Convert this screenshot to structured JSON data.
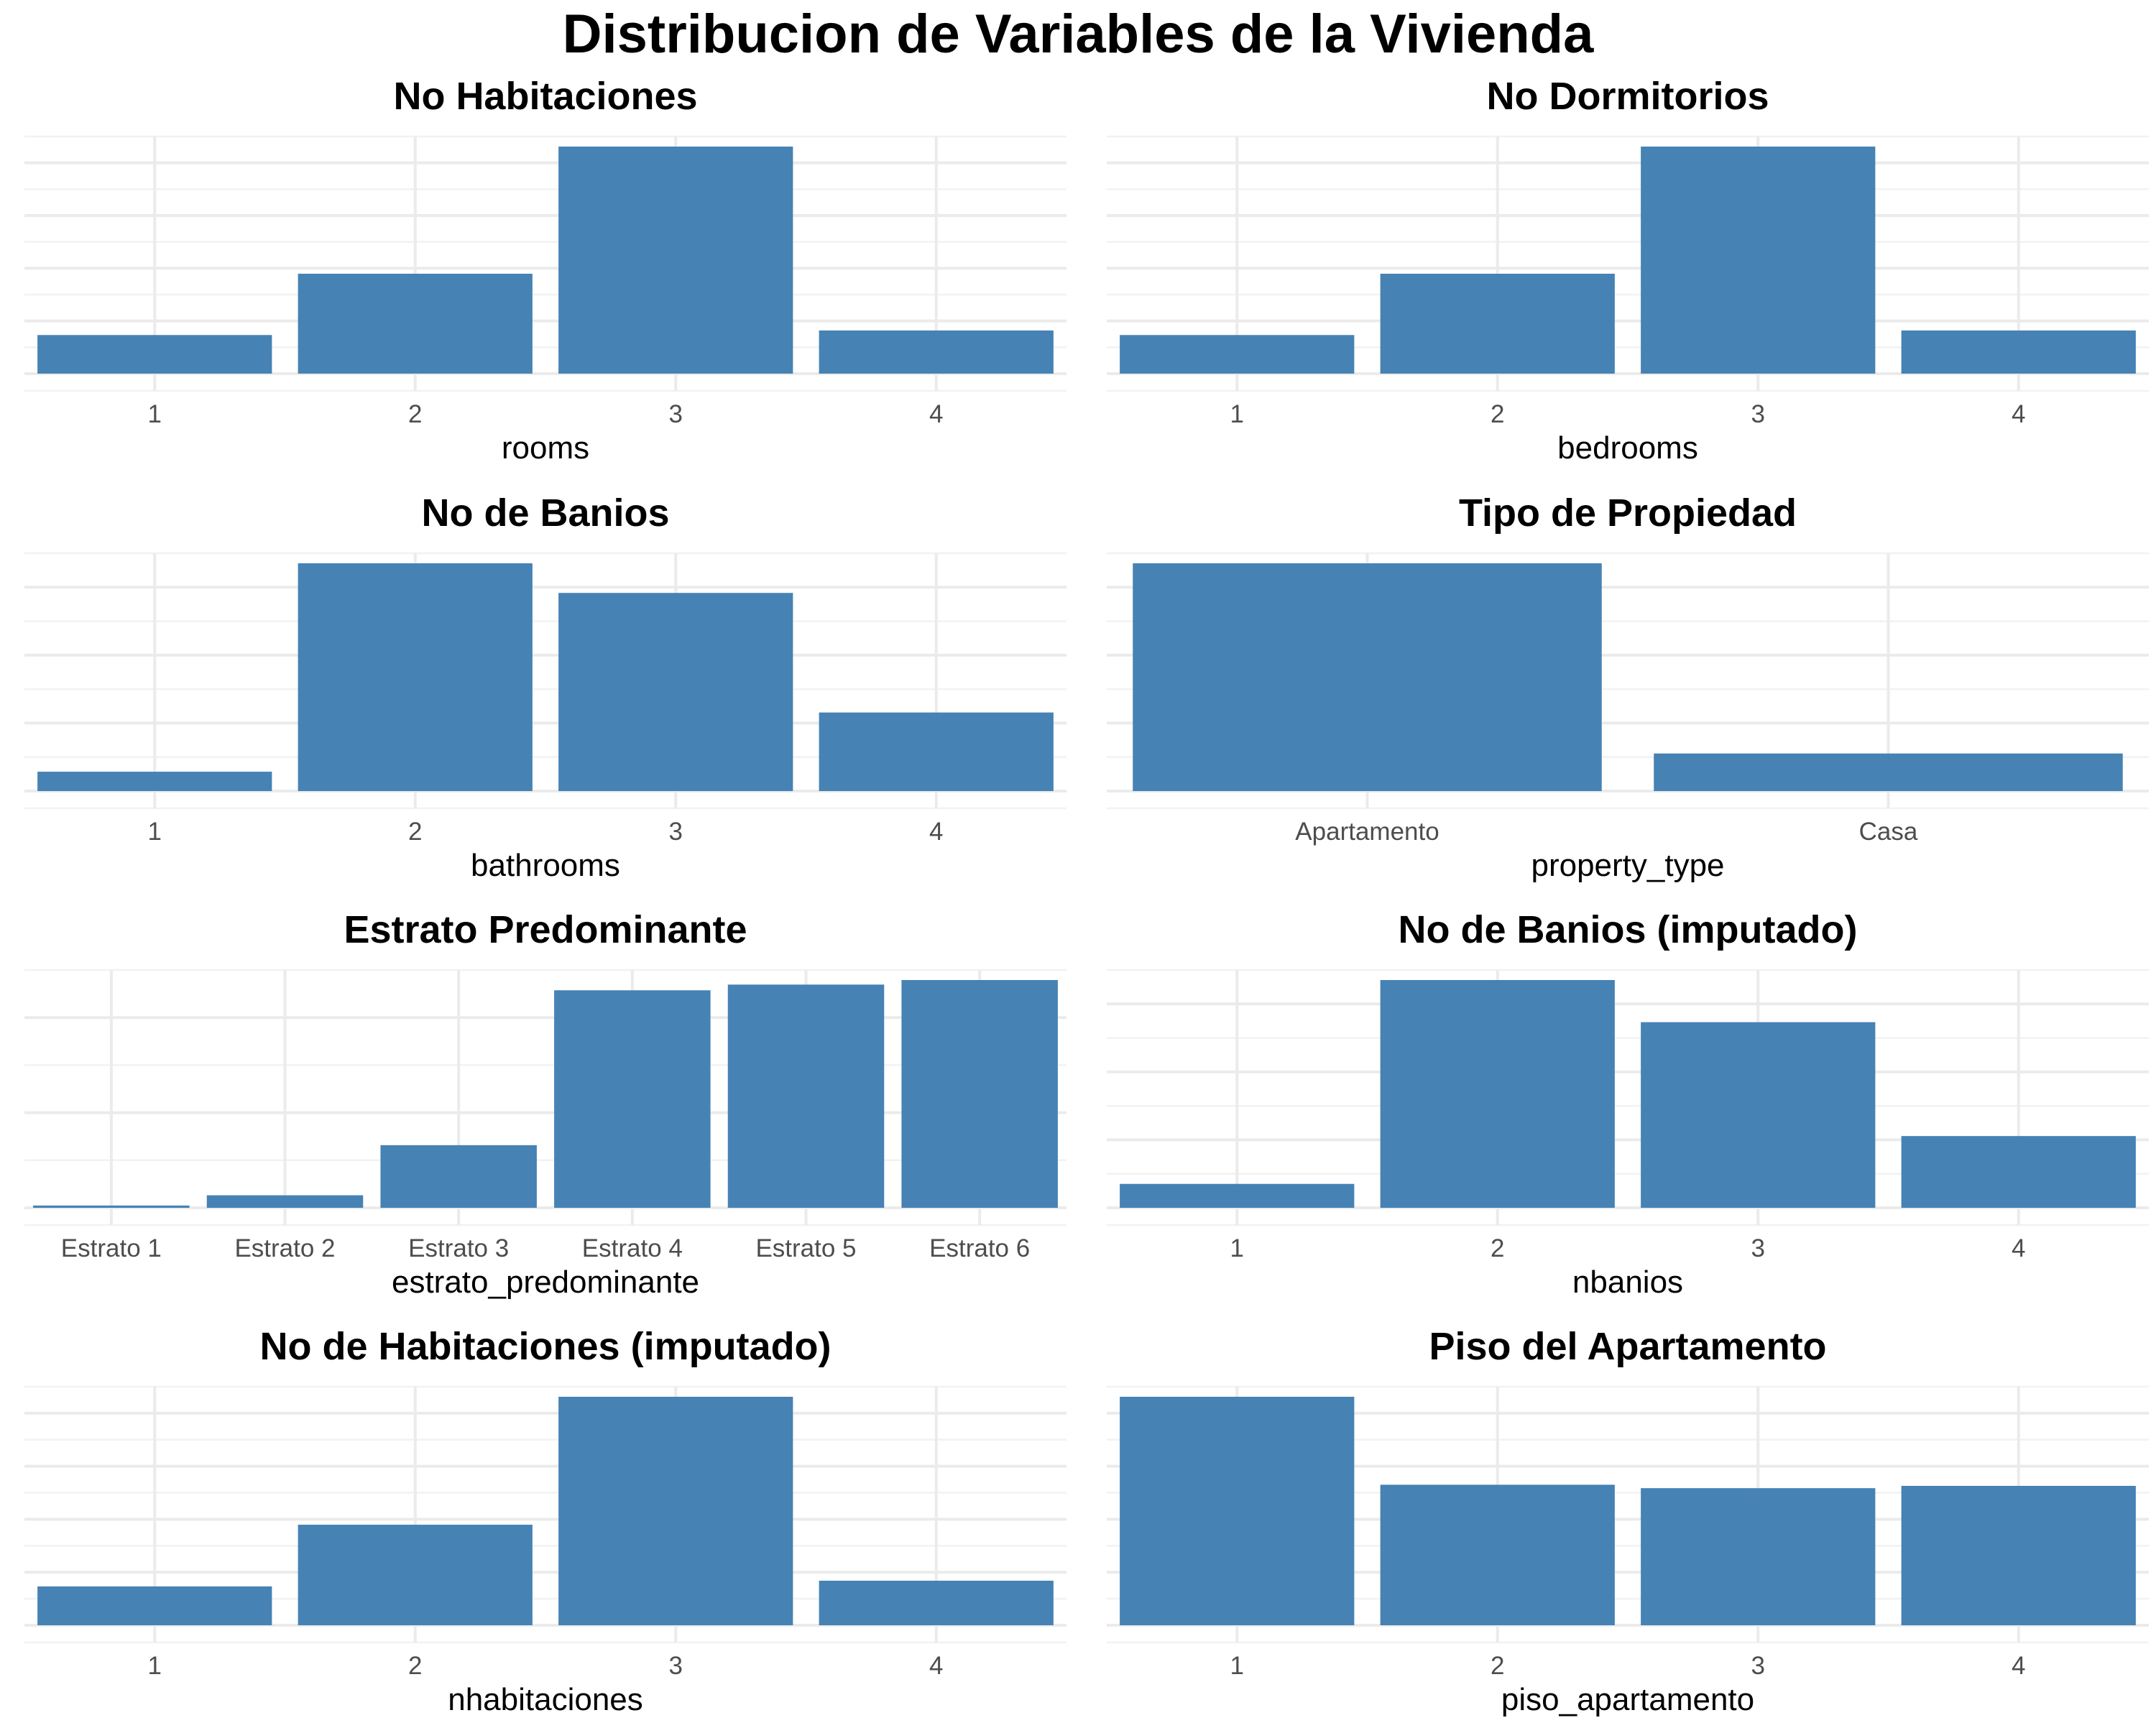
{
  "title": "Distribucion de Variables de la Vivienda",
  "colors": {
    "bar": "#4682B4",
    "grid_major": "#EBEBEB",
    "grid_minor": "#F2F2F2",
    "background": "#FFFFFF"
  },
  "chart_data": [
    {
      "type": "bar",
      "title": "No Habitaciones",
      "xlabel": "rooms",
      "ylabel": "",
      "categories": [
        "1",
        "2",
        "3",
        "4"
      ],
      "values": [
        17,
        44,
        100,
        19
      ],
      "ylim": [
        0,
        100
      ],
      "y_grid_lines": 10,
      "grid": true
    },
    {
      "type": "bar",
      "title": "No Dormitorios",
      "xlabel": "bedrooms",
      "ylabel": "",
      "categories": [
        "1",
        "2",
        "3",
        "4"
      ],
      "values": [
        17,
        44,
        100,
        19
      ],
      "ylim": [
        0,
        100
      ],
      "y_grid_lines": 10,
      "grid": true
    },
    {
      "type": "bar",
      "title": "No de Banios",
      "xlabel": "bathrooms",
      "ylabel": "",
      "categories": [
        "1",
        "2",
        "3",
        "4"
      ],
      "values": [
        8.5,
        100,
        87,
        34.5
      ],
      "ylim": [
        0,
        100
      ],
      "y_grid_lines": 8,
      "grid": true
    },
    {
      "type": "bar",
      "title": "Tipo de Propiedad",
      "xlabel": "property_type",
      "ylabel": "",
      "categories": [
        "Apartamento",
        "Casa"
      ],
      "values": [
        100,
        16.5
      ],
      "ylim": [
        0,
        100
      ],
      "y_grid_lines": 8,
      "grid": true
    },
    {
      "type": "bar",
      "title": "Estrato Predominante",
      "xlabel": "estrato_predominante",
      "ylabel": "",
      "categories": [
        "Estrato 1",
        "Estrato 2",
        "Estrato 3",
        "Estrato 4",
        "Estrato 5",
        "Estrato 6"
      ],
      "values": [
        1,
        5.5,
        27.5,
        95.5,
        98,
        100
      ],
      "ylim": [
        0,
        100
      ],
      "y_grid_lines": 6,
      "grid": true
    },
    {
      "type": "bar",
      "title": "No de Banios (imputado)",
      "xlabel": "nbanios",
      "ylabel": "",
      "categories": [
        "1",
        "2",
        "3",
        "4"
      ],
      "values": [
        10.5,
        100,
        81.5,
        31.5
      ],
      "ylim": [
        0,
        100
      ],
      "y_grid_lines": 8,
      "grid": true
    },
    {
      "type": "bar",
      "title": "No de Habitaciones (imputado)",
      "xlabel": "nhabitaciones",
      "ylabel": "",
      "categories": [
        "1",
        "2",
        "3",
        "4"
      ],
      "values": [
        17,
        44,
        100,
        19.5
      ],
      "ylim": [
        0,
        100
      ],
      "y_grid_lines": 10,
      "grid": true
    },
    {
      "type": "bar",
      "title": "Piso del Apartamento",
      "xlabel": "piso_apartamento",
      "ylabel": "",
      "categories": [
        "1",
        "2",
        "3",
        "4"
      ],
      "values": [
        100,
        61.5,
        60,
        61
      ],
      "ylim": [
        0,
        100
      ],
      "y_grid_lines": 10,
      "grid": true
    }
  ]
}
